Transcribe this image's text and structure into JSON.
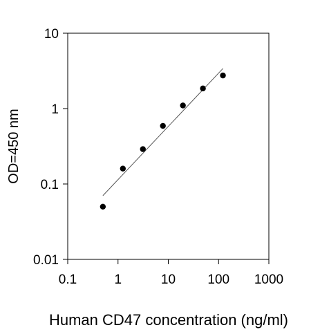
{
  "chart_data": {
    "type": "scatter",
    "xlabel": "Human CD47 concentration (ng/ml)",
    "ylabel": "OD=450 nm",
    "xscale": "log",
    "yscale": "log",
    "xlim": [
      0.1,
      1000
    ],
    "ylim": [
      0.01,
      10
    ],
    "x_ticks": [
      "0.1",
      "1",
      "10",
      "100",
      "1000"
    ],
    "y_ticks": [
      "0.01",
      "0.1",
      "1",
      "10"
    ],
    "grid": false,
    "series": [
      {
        "x": [
          0.5,
          1.25,
          3.125,
          7.8125,
          19.53,
          48.83,
          122.07
        ],
        "y": [
          0.05,
          0.16,
          0.29,
          0.59,
          1.1,
          1.85,
          2.75
        ]
      }
    ],
    "fit_line": {
      "x": [
        0.5,
        122.07
      ],
      "y": [
        0.07,
        3.4
      ]
    },
    "colors": {
      "points": "#000000",
      "fit_line": "#555555",
      "axes": "#000000"
    }
  }
}
